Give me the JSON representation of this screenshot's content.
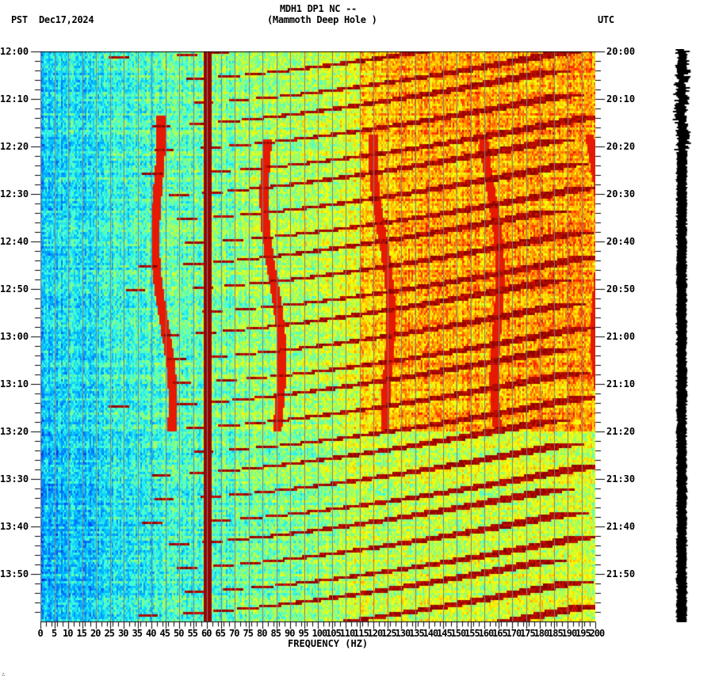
{
  "header": {
    "station": "MDH1 DP1 NC --",
    "site": "(Mammoth Deep Hole )",
    "left_timezone": "PST",
    "date": "Dec17,2024",
    "right_timezone": "UTC"
  },
  "footer_mark": "∴",
  "chart_data": {
    "type": "heatmap",
    "title": "MDH1 DP1 NC -- (Mammoth Deep Hole )",
    "xlabel": "FREQUENCY (HZ)",
    "ylabel_left": "PST",
    "ylabel_right": "UTC",
    "x_range": [
      0,
      200
    ],
    "x_ticks": [
      0,
      5,
      10,
      15,
      20,
      25,
      30,
      35,
      40,
      45,
      50,
      55,
      60,
      65,
      70,
      75,
      80,
      85,
      90,
      95,
      100,
      105,
      110,
      115,
      120,
      125,
      130,
      135,
      140,
      145,
      150,
      155,
      160,
      165,
      170,
      175,
      180,
      185,
      190,
      195,
      200
    ],
    "y_range_minutes": [
      0,
      120
    ],
    "y_ticks_left": [
      "12:00",
      "12:10",
      "12:20",
      "12:30",
      "12:40",
      "12:50",
      "13:00",
      "13:10",
      "13:20",
      "13:30",
      "13:40",
      "13:50"
    ],
    "y_ticks_right": [
      "20:00",
      "20:10",
      "20:20",
      "20:30",
      "20:40",
      "20:50",
      "21:00",
      "21:10",
      "21:20",
      "21:30",
      "21:40",
      "21:50"
    ],
    "minor_tick_minutes": 2,
    "grid": {
      "vertical_every_hz": 5,
      "color": "#808080"
    },
    "colormap": [
      "#0000c0",
      "#0060ff",
      "#00c0ff",
      "#40ffe0",
      "#a0ff60",
      "#ffff00",
      "#ffa000",
      "#ff2000",
      "#800000"
    ],
    "features": {
      "constant_line_hz": 60,
      "chirp_pattern": {
        "period_minutes": 5,
        "start_hz_range": [
          20,
          45
        ],
        "description": "repeating curved descending-time harmonic arcs"
      },
      "wandering_lines_hz": [
        40,
        80,
        120,
        160,
        197
      ],
      "high_energy_window_minutes": [
        0,
        80
      ],
      "low_energy_after_minutes": 82
    },
    "seismogram_trace": {
      "position": "right",
      "color": "#000000"
    }
  }
}
